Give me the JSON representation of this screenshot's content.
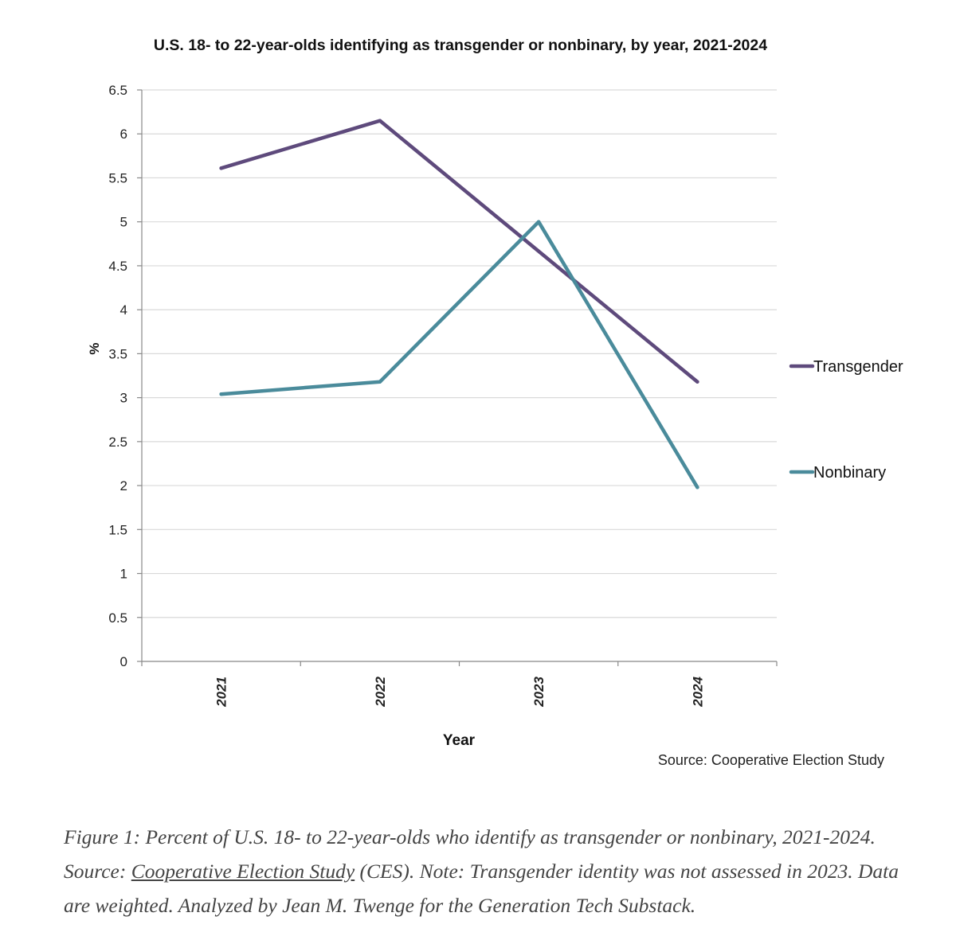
{
  "chart_data": {
    "type": "line",
    "title": "U.S. 18- to 22-year-olds identifying as transgender or nonbinary, by year, 2021-2024",
    "xlabel": "Year",
    "ylabel": "%",
    "categories": [
      "2021",
      "2022",
      "2023",
      "2024"
    ],
    "ylim": [
      0,
      6.5
    ],
    "yticks": [
      "0",
      "0.5",
      "1",
      "1.5",
      "2",
      "2.5",
      "3",
      "3.5",
      "4",
      "4.5",
      "5",
      "5.5",
      "6",
      "6.5"
    ],
    "grid": true,
    "legend_position": "right",
    "series": [
      {
        "name": "Transgender",
        "color": "#5e4a7c",
        "values": [
          5.61,
          6.15,
          null,
          3.18
        ]
      },
      {
        "name": "Nonbinary",
        "color": "#4a8b9b",
        "values": [
          3.04,
          3.18,
          5.0,
          1.98
        ]
      }
    ],
    "source_note": "Source: Cooperative Election Study"
  },
  "caption": {
    "before": "Figure 1: Percent of U.S. 18- to 22-year-olds who identify as transgender or nonbinary, 2021-2024. Source: ",
    "link": "Cooperative Election Study",
    "after": " (CES). Note: Transgender identity was not assessed in 2023. Data are weighted. Analyzed by Jean M. Twenge for the Generation Tech Substack."
  }
}
